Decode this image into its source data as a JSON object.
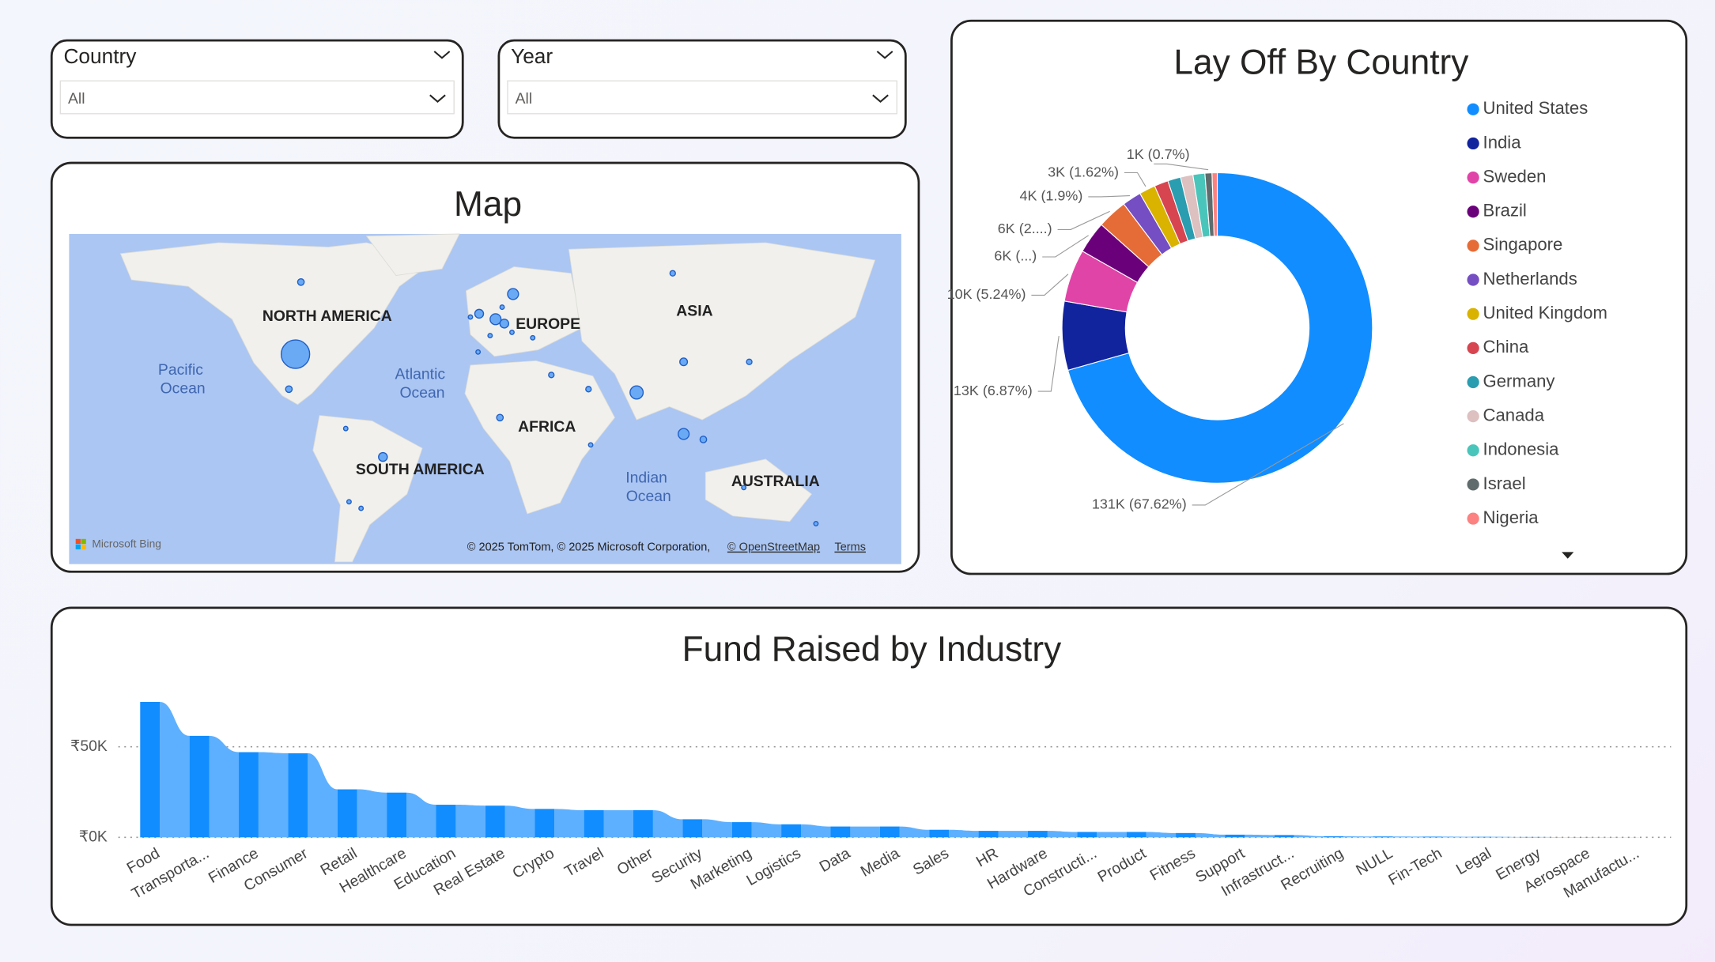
{
  "slicers": [
    {
      "title": "Country",
      "value": "All"
    },
    {
      "title": "Year",
      "value": "All"
    }
  ],
  "map": {
    "title": "Map",
    "labels": [
      "NORTH AMERICA",
      "EUROPE",
      "ASIA",
      "Pacific Ocean",
      "Atlantic Ocean",
      "AFRICA",
      "SOUTH AMERICA",
      "Indian Ocean",
      "AUSTRALIA"
    ],
    "brand": "Microsoft Bing",
    "copyright": "© 2025 TomTom, © 2025 Microsoft Corporation,",
    "osm": "© OpenStreetMap",
    "terms": "Terms"
  },
  "chart_data": [
    {
      "type": "donut",
      "title": "Lay Off By Country",
      "categories": [
        "United States",
        "India",
        "Sweden",
        "Brazil",
        "Singapore",
        "Netherlands",
        "United Kingdom",
        "China",
        "Germany",
        "Canada",
        "Indonesia",
        "Israel",
        "Nigeria"
      ],
      "values": [
        131000,
        13300,
        10150,
        6200,
        5800,
        3680,
        3140,
        2700,
        2500,
        2400,
        2300,
        1360,
        1000
      ],
      "value_labels": [
        "131K (67.62%)",
        "13K (6.87%)",
        "10K (5.24%)",
        "6K (...)",
        "6K (2....)",
        "4K (1.9%)",
        "3K (1.62%)",
        null,
        null,
        null,
        null,
        "1K (0.7%)",
        null
      ],
      "colors": [
        "#118DFF",
        "#12239E",
        "#E044A7",
        "#6B007B",
        "#E66C37",
        "#744EC2",
        "#D9B300",
        "#D64550",
        "#2A9DB0",
        "#DDC0C0",
        "#4AC5BB",
        "#5F6B6D",
        "#FB8281"
      ]
    },
    {
      "type": "ribbon",
      "title": "Fund Raised by Industry",
      "categories": [
        "Food",
        "Transporta...",
        "Finance",
        "Consumer",
        "Retail",
        "Healthcare",
        "Education",
        "Real Estate",
        "Crypto",
        "Travel",
        "Other",
        "Security",
        "Marketing",
        "Logistics",
        "Data",
        "Media",
        "Sales",
        "HR",
        "Hardware",
        "Constructi...",
        "Product",
        "Fitness",
        "Support",
        "Infrastruct...",
        "Recruiting",
        "NULL",
        "Fin-Tech",
        "Legal",
        "Energy",
        "Aerospace",
        "Manufactu..."
      ],
      "values": [
        74700,
        56000,
        47000,
        46400,
        26500,
        24700,
        18000,
        17500,
        15700,
        15000,
        15000,
        10000,
        8400,
        7200,
        6000,
        6000,
        4200,
        3600,
        3600,
        3000,
        3000,
        2400,
        1500,
        1300,
        600,
        500,
        400,
        300,
        200,
        100,
        50
      ],
      "color": "#118DFF",
      "ribbon_color": "#5DB0FF",
      "ylim": [
        0,
        82000
      ],
      "yticks": [
        {
          "value": 0,
          "label": "₹0K"
        },
        {
          "value": 50000,
          "label": "₹50K"
        }
      ],
      "grid": true
    }
  ]
}
